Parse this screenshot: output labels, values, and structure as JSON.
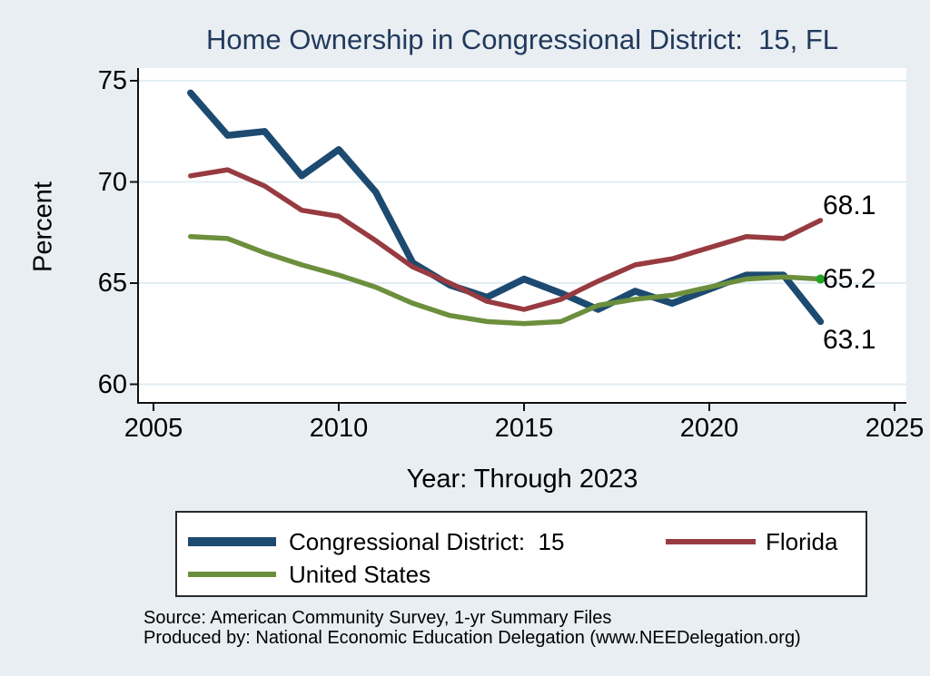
{
  "title": {
    "text": "Home Ownership in Congressional District:  15, FL",
    "color": "#21395c"
  },
  "axes": {
    "y_label": "Percent",
    "x_label": "Year: Through 2023",
    "y_ticks": [
      "75",
      "70",
      "65",
      "60"
    ],
    "y_tick_values": [
      75,
      70,
      65,
      60
    ],
    "x_ticks": [
      "2005",
      "2010",
      "2015",
      "2020",
      "2025"
    ],
    "x_tick_values": [
      2005,
      2010,
      2015,
      2020,
      2025
    ]
  },
  "chart_data": {
    "type": "line",
    "title": "Home Ownership in Congressional District:  15, FL",
    "xlabel": "Year: Through 2023",
    "ylabel": "Percent",
    "xlim": [
      2005,
      2025
    ],
    "ylim": [
      59.1,
      75.6
    ],
    "grid": true,
    "legend_position": "bottom",
    "x": [
      2006,
      2007,
      2008,
      2009,
      2010,
      2011,
      2012,
      2013,
      2014,
      2015,
      2016,
      2017,
      2018,
      2019,
      2021,
      2022,
      2023
    ],
    "series": [
      {
        "name": "Congressional District:  15",
        "color": "#1d4a70",
        "stroke_width": 7.5,
        "values": [
          74.4,
          72.3,
          72.5,
          70.3,
          71.6,
          69.5,
          66.0,
          64.9,
          64.3,
          65.2,
          64.5,
          63.7,
          64.6,
          64.0,
          65.4,
          65.4,
          63.1
        ],
        "end_label": "63.1"
      },
      {
        "name": "Florida",
        "color": "#973b41",
        "stroke_width": 5.5,
        "values": [
          70.3,
          70.6,
          69.8,
          68.6,
          68.3,
          67.1,
          65.8,
          65.0,
          64.1,
          63.7,
          64.2,
          65.1,
          65.9,
          66.2,
          67.3,
          67.2,
          68.1
        ],
        "end_label": "68.1"
      },
      {
        "name": "United States",
        "color": "#6c8f3d",
        "stroke_width": 5.5,
        "values": [
          67.3,
          67.2,
          66.5,
          65.9,
          65.4,
          64.8,
          64.0,
          63.4,
          63.1,
          63.0,
          63.1,
          63.9,
          64.2,
          64.4,
          65.2,
          65.3,
          65.2
        ],
        "end_label": "65.2",
        "end_dot_color": "#22a422"
      }
    ]
  },
  "colors": {
    "background": "#e8eef1",
    "plot_background": "#ffffff",
    "gridline": "#e2edf3",
    "axis_line": "#111111"
  },
  "footer": {
    "source": "Source: American Community Survey, 1-yr Summary Files",
    "produced_by": "Produced by: National Economic Education Delegation (www.NEEDelegation.org)"
  }
}
